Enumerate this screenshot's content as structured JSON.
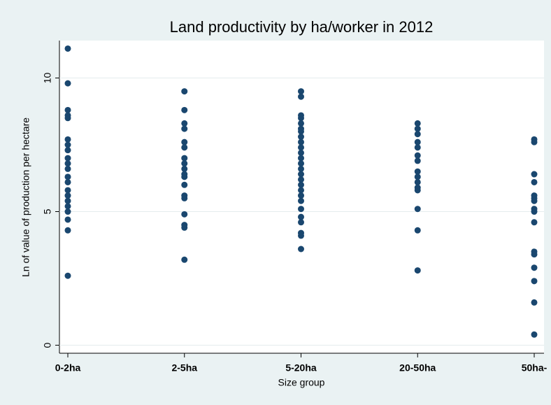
{
  "chart_data": {
    "type": "scatter",
    "title": "Land productivity by ha/worker in 2012",
    "x_label": "Size group",
    "y_label": "Ln of value of production per hectare",
    "categories": [
      "0-2ha",
      "2-5ha",
      "5-20ha",
      "20-50ha",
      "50ha-"
    ],
    "values": [
      [
        11.1,
        9.8,
        8.8,
        8.6,
        8.5,
        7.7,
        7.5,
        7.3,
        7.0,
        6.8,
        6.6,
        6.3,
        6.1,
        5.8,
        5.6,
        5.4,
        5.2,
        5.0,
        4.7,
        4.3,
        2.6
      ],
      [
        9.5,
        8.8,
        8.3,
        8.1,
        7.6,
        7.4,
        7.0,
        6.8,
        6.6,
        6.4,
        6.3,
        6.0,
        5.6,
        5.5,
        4.9,
        4.5,
        4.4,
        3.2
      ],
      [
        9.5,
        9.3,
        8.6,
        8.5,
        8.3,
        8.1,
        8.0,
        7.8,
        7.6,
        7.4,
        7.2,
        7.0,
        6.8,
        6.6,
        6.4,
        6.2,
        6.0,
        5.8,
        5.6,
        5.4,
        5.1,
        4.8,
        4.6,
        4.2,
        4.1,
        3.6
      ],
      [
        8.3,
        8.1,
        7.9,
        7.6,
        7.4,
        7.1,
        6.9,
        6.5,
        6.3,
        6.1,
        5.9,
        5.8,
        5.1,
        4.3,
        2.8
      ],
      [
        7.7,
        7.6,
        6.4,
        6.1,
        5.6,
        5.5,
        5.4,
        5.1,
        5.0,
        4.6,
        3.5,
        3.4,
        2.9,
        2.4,
        1.6,
        0.4
      ]
    ],
    "color": "#1a476f",
    "ylim": [
      -0.3,
      11.4
    ],
    "yticks": [
      0,
      5,
      10
    ],
    "grid": true
  }
}
